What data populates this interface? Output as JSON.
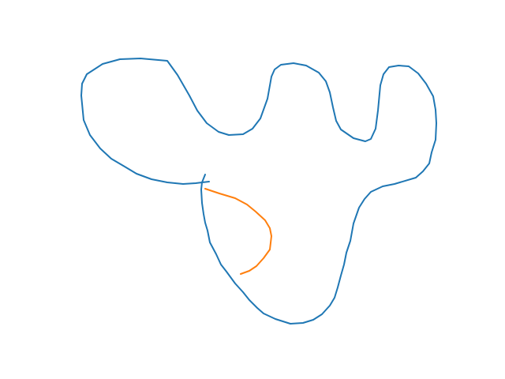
{
  "strokes": [
    {
      "name": "blue-outline-stroke",
      "color": "#1f77b4"
    },
    {
      "name": "orange-curve-stroke",
      "color": "#ff7f0e"
    }
  ]
}
